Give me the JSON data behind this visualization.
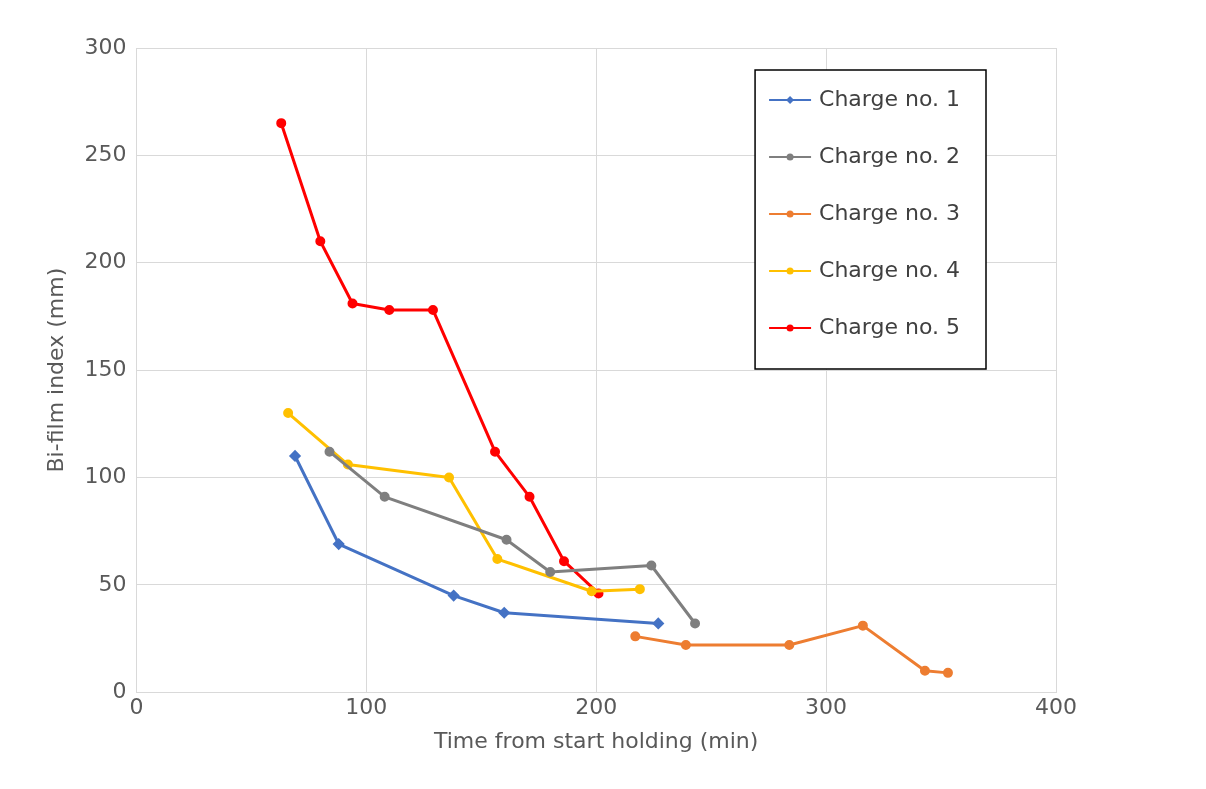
{
  "chart_data": {
    "type": "line",
    "xlabel": "Time from start holding (min)",
    "ylabel": "Bi-film index (mm)",
    "xlim": [
      0,
      400
    ],
    "xticks": [
      0,
      100,
      200,
      300,
      400
    ],
    "ylim": [
      0,
      300
    ],
    "yticks": [
      0,
      50,
      100,
      150,
      200,
      250,
      300
    ],
    "grid": true,
    "legend": "top right",
    "marker": "circle",
    "line_style": "solid",
    "series": [
      {
        "name": "Charge no. 1",
        "color": "#4472c4",
        "marker": "diamond",
        "x": [
          69,
          88,
          138,
          160,
          227
        ],
        "values": [
          110,
          69,
          45,
          37,
          32
        ]
      },
      {
        "name": "Charge no. 2",
        "color": "#7f7f7f",
        "x": [
          84,
          108,
          161,
          180,
          224,
          243
        ],
        "values": [
          112,
          91,
          71,
          56,
          59,
          32
        ]
      },
      {
        "name": "Charge no. 3",
        "color": "#ed7d31",
        "x": [
          217,
          239,
          284,
          316,
          343,
          353
        ],
        "values": [
          26,
          22,
          22,
          31,
          10,
          9
        ]
      },
      {
        "name": "Charge no. 4",
        "color": "#ffc000",
        "x": [
          66,
          92,
          136,
          157,
          198,
          219
        ],
        "values": [
          130,
          106,
          100,
          62,
          47,
          48
        ]
      },
      {
        "name": "Charge no. 5",
        "color": "#ff0000",
        "x": [
          63,
          80,
          94,
          110,
          129,
          156,
          171,
          186,
          201
        ],
        "values": [
          265,
          210,
          181,
          178,
          178,
          112,
          91,
          61,
          46
        ]
      }
    ]
  }
}
